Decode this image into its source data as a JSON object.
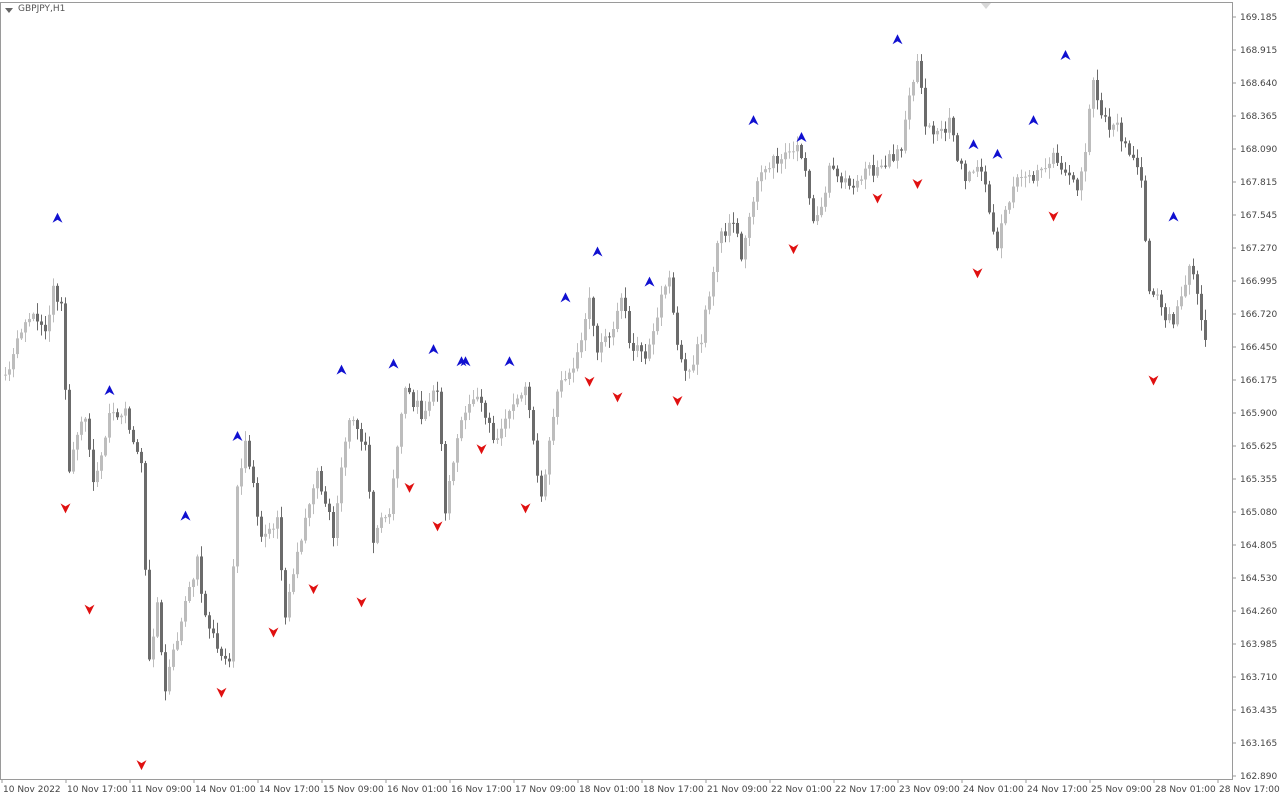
{
  "window": {
    "symbol": "GBPJPY,H1"
  },
  "colors": {
    "background": "#ffffff",
    "frame": "#9a9a9a",
    "bull_candle": "#bdbdbd",
    "bear_candle": "#6b6b6b",
    "up_arrow": "#1010d0",
    "down_arrow": "#e01010",
    "axis_text": "#444444"
  },
  "icons": {
    "up_arrow": "blue-up-fractal-arrow-icon",
    "down_arrow": "red-down-fractal-arrow-icon",
    "toggle": "chart-menu-triangle-icon"
  },
  "chart_data": {
    "type": "candlestick",
    "title": "GBPJPY,H1",
    "ylim": [
      162.78,
      169.26
    ],
    "y_ticks": [
      "169.185",
      "168.915",
      "168.640",
      "168.365",
      "168.090",
      "167.815",
      "167.545",
      "167.270",
      "166.995",
      "166.720",
      "166.450",
      "166.175",
      "165.900",
      "165.625",
      "165.355",
      "165.080",
      "164.805",
      "164.530",
      "164.260",
      "163.985",
      "163.710",
      "163.435",
      "163.165",
      "162.890"
    ],
    "x_ticks": [
      "10 Nov 2022",
      "10 Nov 17:00",
      "11 Nov 09:00",
      "14 Nov 01:00",
      "14 Nov 17:00",
      "15 Nov 09:00",
      "16 Nov 01:00",
      "16 Nov 17:00",
      "17 Nov 09:00",
      "18 Nov 01:00",
      "18 Nov 17:00",
      "21 Nov 09:00",
      "22 Nov 01:00",
      "22 Nov 17:00",
      "23 Nov 09:00",
      "24 Nov 01:00",
      "24 Nov 17:00",
      "25 Nov 09:00",
      "28 Nov 01:00",
      "28 Nov 17:00"
    ],
    "bars_per_tick": 16,
    "close_path": [
      {
        "bar": 0,
        "price": 166.2
      },
      {
        "bar": 6,
        "price": 166.72
      },
      {
        "bar": 10,
        "price": 166.55
      },
      {
        "bar": 12,
        "price": 166.92
      },
      {
        "bar": 14,
        "price": 166.8
      },
      {
        "bar": 16,
        "price": 165.45
      },
      {
        "bar": 20,
        "price": 165.9
      },
      {
        "bar": 22,
        "price": 165.3
      },
      {
        "bar": 26,
        "price": 165.85
      },
      {
        "bar": 30,
        "price": 165.9
      },
      {
        "bar": 34,
        "price": 165.5
      },
      {
        "bar": 35,
        "price": 164.6
      },
      {
        "bar": 36,
        "price": 163.8
      },
      {
        "bar": 38,
        "price": 164.3
      },
      {
        "bar": 40,
        "price": 163.6
      },
      {
        "bar": 42,
        "price": 163.9
      },
      {
        "bar": 48,
        "price": 164.7
      },
      {
        "bar": 50,
        "price": 164.2
      },
      {
        "bar": 54,
        "price": 163.9
      },
      {
        "bar": 56,
        "price": 163.85
      },
      {
        "bar": 58,
        "price": 165.3
      },
      {
        "bar": 60,
        "price": 165.7
      },
      {
        "bar": 64,
        "price": 164.9
      },
      {
        "bar": 68,
        "price": 165.0
      },
      {
        "bar": 70,
        "price": 164.2
      },
      {
        "bar": 74,
        "price": 164.9
      },
      {
        "bar": 78,
        "price": 165.4
      },
      {
        "bar": 82,
        "price": 164.9
      },
      {
        "bar": 86,
        "price": 165.9
      },
      {
        "bar": 90,
        "price": 165.6
      },
      {
        "bar": 92,
        "price": 164.85
      },
      {
        "bar": 96,
        "price": 165.1
      },
      {
        "bar": 100,
        "price": 166.1
      },
      {
        "bar": 104,
        "price": 165.9
      },
      {
        "bar": 108,
        "price": 166.1
      },
      {
        "bar": 110,
        "price": 165.1
      },
      {
        "bar": 114,
        "price": 165.9
      },
      {
        "bar": 118,
        "price": 166.0
      },
      {
        "bar": 122,
        "price": 165.7
      },
      {
        "bar": 126,
        "price": 165.9
      },
      {
        "bar": 130,
        "price": 166.1
      },
      {
        "bar": 134,
        "price": 165.2
      },
      {
        "bar": 138,
        "price": 166.1
      },
      {
        "bar": 142,
        "price": 166.3
      },
      {
        "bar": 146,
        "price": 166.8
      },
      {
        "bar": 148,
        "price": 166.4
      },
      {
        "bar": 152,
        "price": 166.6
      },
      {
        "bar": 154,
        "price": 166.9
      },
      {
        "bar": 156,
        "price": 166.5
      },
      {
        "bar": 160,
        "price": 166.4
      },
      {
        "bar": 164,
        "price": 166.85
      },
      {
        "bar": 166,
        "price": 167.0
      },
      {
        "bar": 168,
        "price": 166.5
      },
      {
        "bar": 170,
        "price": 166.2
      },
      {
        "bar": 174,
        "price": 166.5
      },
      {
        "bar": 178,
        "price": 167.3
      },
      {
        "bar": 182,
        "price": 167.5
      },
      {
        "bar": 184,
        "price": 167.2
      },
      {
        "bar": 188,
        "price": 167.8
      },
      {
        "bar": 190,
        "price": 167.95
      },
      {
        "bar": 194,
        "price": 168.05
      },
      {
        "bar": 198,
        "price": 168.1
      },
      {
        "bar": 200,
        "price": 167.9
      },
      {
        "bar": 202,
        "price": 167.5
      },
      {
        "bar": 204,
        "price": 167.6
      },
      {
        "bar": 206,
        "price": 167.9
      },
      {
        "bar": 210,
        "price": 167.8
      },
      {
        "bar": 214,
        "price": 167.85
      },
      {
        "bar": 218,
        "price": 167.95
      },
      {
        "bar": 224,
        "price": 168.05
      },
      {
        "bar": 226,
        "price": 168.5
      },
      {
        "bar": 228,
        "price": 168.8
      },
      {
        "bar": 230,
        "price": 168.3
      },
      {
        "bar": 232,
        "price": 168.2
      },
      {
        "bar": 236,
        "price": 168.3
      },
      {
        "bar": 238,
        "price": 168.05
      },
      {
        "bar": 240,
        "price": 167.85
      },
      {
        "bar": 244,
        "price": 167.9
      },
      {
        "bar": 246,
        "price": 167.6
      },
      {
        "bar": 248,
        "price": 167.3
      },
      {
        "bar": 250,
        "price": 167.55
      },
      {
        "bar": 252,
        "price": 167.8
      },
      {
        "bar": 256,
        "price": 167.85
      },
      {
        "bar": 260,
        "price": 167.9
      },
      {
        "bar": 262,
        "price": 168.1
      },
      {
        "bar": 264,
        "price": 167.95
      },
      {
        "bar": 268,
        "price": 167.8
      },
      {
        "bar": 270,
        "price": 168.05
      },
      {
        "bar": 272,
        "price": 168.7
      },
      {
        "bar": 274,
        "price": 168.4
      },
      {
        "bar": 276,
        "price": 168.25
      },
      {
        "bar": 278,
        "price": 168.3
      },
      {
        "bar": 280,
        "price": 168.1
      },
      {
        "bar": 282,
        "price": 168.0
      },
      {
        "bar": 284,
        "price": 167.85
      },
      {
        "bar": 286,
        "price": 166.9
      },
      {
        "bar": 288,
        "price": 166.85
      },
      {
        "bar": 292,
        "price": 166.6
      },
      {
        "bar": 294,
        "price": 166.9
      },
      {
        "bar": 296,
        "price": 167.1
      },
      {
        "bar": 298,
        "price": 166.9
      },
      {
        "bar": 300,
        "price": 166.45
      }
    ],
    "up_arrows": [
      {
        "bar": 13,
        "price": 167.52
      },
      {
        "bar": 26,
        "price": 166.09
      },
      {
        "bar": 45,
        "price": 165.05
      },
      {
        "bar": 58,
        "price": 165.71
      },
      {
        "bar": 84,
        "price": 166.26
      },
      {
        "bar": 97,
        "price": 166.31
      },
      {
        "bar": 107,
        "price": 166.43
      },
      {
        "bar": 114,
        "price": 166.33
      },
      {
        "bar": 115,
        "price": 166.33
      },
      {
        "bar": 126,
        "price": 166.33
      },
      {
        "bar": 140,
        "price": 166.86
      },
      {
        "bar": 148,
        "price": 167.24
      },
      {
        "bar": 161,
        "price": 166.99
      },
      {
        "bar": 187,
        "price": 168.33
      },
      {
        "bar": 199,
        "price": 168.19
      },
      {
        "bar": 223,
        "price": 169.0
      },
      {
        "bar": 242,
        "price": 168.13
      },
      {
        "bar": 248,
        "price": 168.05
      },
      {
        "bar": 257,
        "price": 168.33
      },
      {
        "bar": 265,
        "price": 168.87
      },
      {
        "bar": 292,
        "price": 167.53
      }
    ],
    "down_arrows": [
      {
        "bar": 15,
        "price": 165.11
      },
      {
        "bar": 21,
        "price": 164.27
      },
      {
        "bar": 34,
        "price": 162.98
      },
      {
        "bar": 54,
        "price": 163.58
      },
      {
        "bar": 67,
        "price": 164.08
      },
      {
        "bar": 77,
        "price": 164.44
      },
      {
        "bar": 89,
        "price": 164.33
      },
      {
        "bar": 101,
        "price": 165.28
      },
      {
        "bar": 108,
        "price": 164.96
      },
      {
        "bar": 119,
        "price": 165.6
      },
      {
        "bar": 130,
        "price": 165.11
      },
      {
        "bar": 146,
        "price": 166.16
      },
      {
        "bar": 153,
        "price": 166.03
      },
      {
        "bar": 168,
        "price": 166.0
      },
      {
        "bar": 197,
        "price": 167.26
      },
      {
        "bar": 218,
        "price": 167.68
      },
      {
        "bar": 228,
        "price": 167.8
      },
      {
        "bar": 243,
        "price": 167.06
      },
      {
        "bar": 262,
        "price": 167.53
      },
      {
        "bar": 287,
        "price": 166.17
      }
    ]
  }
}
